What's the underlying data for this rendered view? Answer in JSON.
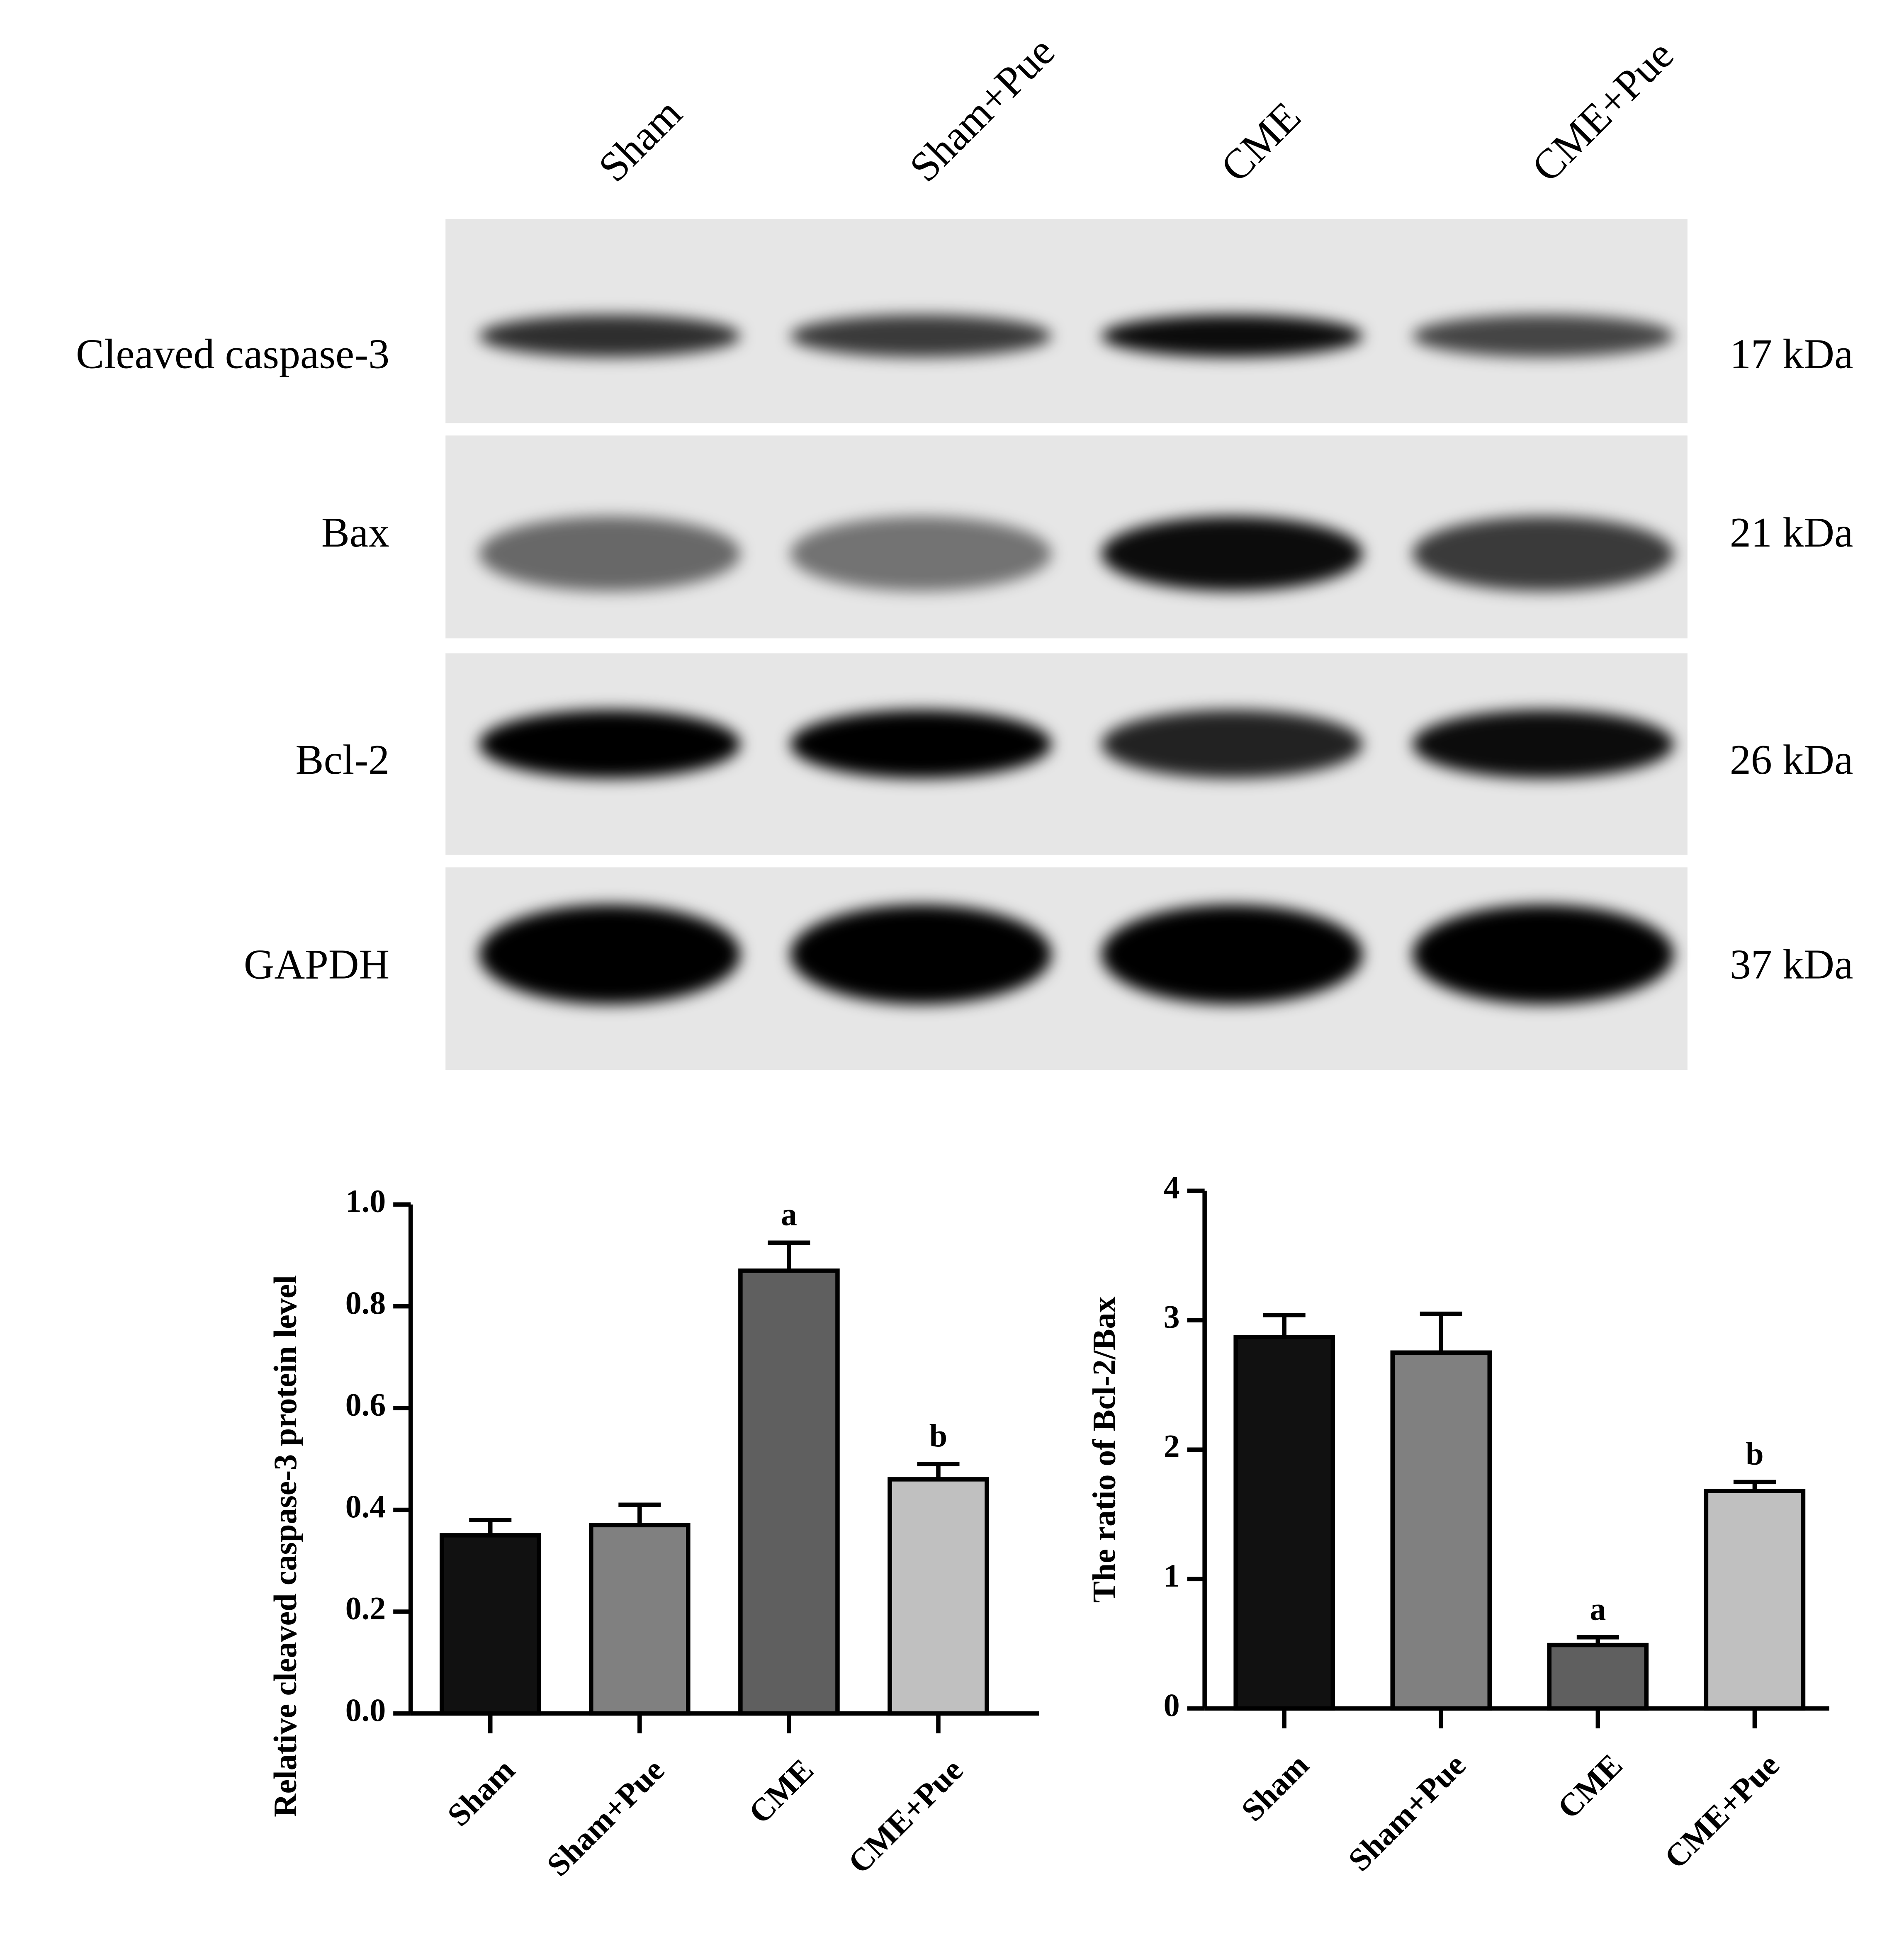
{
  "blot": {
    "lanes": [
      "Sham",
      "Sham+Pue",
      "CME",
      "CME+Pue"
    ],
    "proteins": [
      {
        "name": "Cleaved caspase-3",
        "size": "17 kDa"
      },
      {
        "name": "Bax",
        "size": "21 kDa"
      },
      {
        "name": "Bcl-2",
        "size": "26 kDa"
      },
      {
        "name": "GAPDH",
        "size": "37 kDa"
      }
    ]
  },
  "chart_data": [
    {
      "type": "bar",
      "y_label": "Relative cleaved caspase-3 protein level",
      "categories": [
        "Sham",
        "Sham+Pue",
        "CME",
        "CME+Pue"
      ],
      "values": [
        0.35,
        0.37,
        0.87,
        0.46
      ],
      "errors": [
        0.03,
        0.04,
        0.055,
        0.03
      ],
      "annotations": [
        null,
        null,
        "a",
        "b"
      ],
      "colors": [
        "#111111",
        "#808080",
        "#5f5f5f",
        "#c0c0c0"
      ],
      "ylim": [
        0,
        1.0
      ],
      "yticks": [
        {
          "value": 0,
          "label": "0.0"
        },
        0.2,
        0.4,
        0.6,
        0.8,
        {
          "value": 1.0,
          "label": "1.0"
        }
      ]
    },
    {
      "type": "bar",
      "y_label": "The ratio of Bcl-2/Bax",
      "categories": [
        "Sham",
        "Sham+Pue",
        "CME",
        "CME+Pue"
      ],
      "values": [
        2.87,
        2.75,
        0.49,
        1.68
      ],
      "errors": [
        0.17,
        0.3,
        0.06,
        0.07
      ],
      "annotations": [
        null,
        null,
        "a",
        "b"
      ],
      "colors": [
        "#111111",
        "#808080",
        "#5f5f5f",
        "#c0c0c0"
      ],
      "ylim": [
        0,
        4
      ],
      "yticks": [
        0,
        1,
        2,
        3,
        4
      ]
    }
  ]
}
